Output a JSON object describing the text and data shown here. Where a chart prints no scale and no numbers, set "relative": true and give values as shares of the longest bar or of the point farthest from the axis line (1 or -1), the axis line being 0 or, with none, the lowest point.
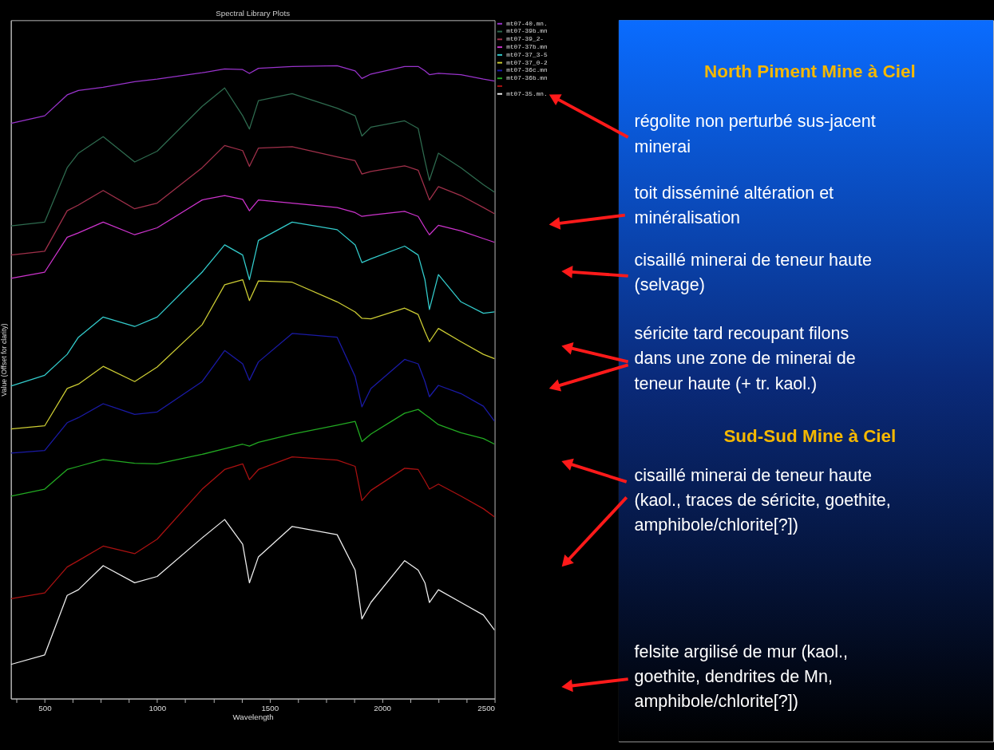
{
  "chart_data": {
    "type": "line",
    "title": "Spectral Library Plots",
    "xlabel": "Wavelength",
    "ylabel": "Value (Offset for clarity)",
    "relative": true,
    "tick_labels": "x",
    "grid": false,
    "legend": "right",
    "xlim": [
      350,
      2500
    ],
    "xticks": [
      {
        "value": 375,
        "label": null
      },
      500,
      {
        "value": 625,
        "label": null
      },
      {
        "value": 750,
        "label": null
      },
      {
        "value": 875,
        "label": null
      },
      1000,
      {
        "value": 1125,
        "label": null
      },
      {
        "value": 1250,
        "label": null
      },
      {
        "value": 1375,
        "label": null
      },
      1500,
      {
        "value": 1625,
        "label": null
      },
      {
        "value": 1750,
        "label": null
      },
      {
        "value": 1875,
        "label": null
      },
      2000,
      {
        "value": 2125,
        "label": null
      },
      {
        "value": 2250,
        "label": null
      },
      {
        "value": 2375,
        "label": null
      },
      2500
    ],
    "x": [
      350,
      500,
      600,
      650,
      760,
      900,
      1000,
      1200,
      1300,
      1380,
      1410,
      1450,
      1600,
      1800,
      1880,
      1910,
      1950,
      2100,
      2160,
      2190,
      2210,
      2250,
      2350,
      2450,
      2500
    ],
    "series": [
      {
        "name": "mt07-40.mn.",
        "color": "#9933cc",
        "values": [
          0.909,
          0.921,
          0.954,
          0.961,
          0.966,
          0.975,
          0.979,
          0.989,
          0.995,
          0.994,
          0.988,
          0.996,
          0.999,
          1.0,
          0.992,
          0.98,
          0.987,
          0.999,
          0.999,
          0.992,
          0.986,
          0.988,
          0.986,
          0.979,
          0.976
        ]
      },
      {
        "name": "mt07-39b.mn",
        "color": "#2e6b4f",
        "values": [
          0.747,
          0.753,
          0.839,
          0.862,
          0.888,
          0.848,
          0.865,
          0.936,
          0.965,
          0.921,
          0.9,
          0.945,
          0.956,
          0.933,
          0.921,
          0.889,
          0.903,
          0.913,
          0.901,
          0.85,
          0.819,
          0.862,
          0.839,
          0.812,
          0.8
        ]
      },
      {
        "name": "mt07-39_2-",
        "color": "#a0304a",
        "values": [
          0.701,
          0.707,
          0.771,
          0.78,
          0.803,
          0.774,
          0.783,
          0.839,
          0.874,
          0.866,
          0.841,
          0.87,
          0.872,
          0.856,
          0.85,
          0.829,
          0.833,
          0.842,
          0.835,
          0.807,
          0.788,
          0.809,
          0.795,
          0.776,
          0.766
        ]
      },
      {
        "name": "mt07-37b.mn",
        "color": "#cc33cc",
        "values": [
          0.664,
          0.674,
          0.729,
          0.736,
          0.753,
          0.733,
          0.744,
          0.788,
          0.795,
          0.789,
          0.771,
          0.788,
          0.783,
          0.776,
          0.768,
          0.762,
          0.764,
          0.77,
          0.762,
          0.744,
          0.733,
          0.748,
          0.739,
          0.727,
          0.721
        ]
      },
      {
        "name": "mt07-37_3-5",
        "color": "#33cccc",
        "values": [
          0.494,
          0.511,
          0.544,
          0.571,
          0.603,
          0.588,
          0.603,
          0.674,
          0.717,
          0.701,
          0.662,
          0.724,
          0.753,
          0.741,
          0.717,
          0.689,
          0.695,
          0.715,
          0.701,
          0.662,
          0.615,
          0.67,
          0.627,
          0.609,
          0.611
        ]
      },
      {
        "name": "mt07-37_0-2",
        "color": "#cccc33",
        "values": [
          0.426,
          0.431,
          0.49,
          0.497,
          0.525,
          0.501,
          0.524,
          0.591,
          0.654,
          0.662,
          0.629,
          0.66,
          0.658,
          0.627,
          0.611,
          0.601,
          0.6,
          0.617,
          0.607,
          0.58,
          0.564,
          0.585,
          0.564,
          0.544,
          0.537
        ]
      },
      {
        "name": "mt07-36c.mn",
        "color": "#1a1aa6",
        "values": [
          0.388,
          0.392,
          0.436,
          0.444,
          0.466,
          0.449,
          0.453,
          0.501,
          0.55,
          0.529,
          0.503,
          0.532,
          0.577,
          0.571,
          0.509,
          0.461,
          0.49,
          0.536,
          0.529,
          0.501,
          0.477,
          0.495,
          0.482,
          0.462,
          0.438
        ]
      },
      {
        "name": "mt07-36b.mn",
        "color": "#22aa22",
        "values": [
          0.32,
          0.331,
          0.362,
          0.367,
          0.378,
          0.372,
          0.371,
          0.386,
          0.395,
          0.402,
          0.399,
          0.405,
          0.418,
          0.432,
          0.438,
          0.406,
          0.418,
          0.451,
          0.457,
          0.449,
          0.444,
          0.433,
          0.42,
          0.411,
          0.402
        ]
      },
      {
        "color": "#aa1111",
        "values": [
          0.158,
          0.167,
          0.208,
          0.218,
          0.241,
          0.229,
          0.252,
          0.331,
          0.362,
          0.371,
          0.346,
          0.362,
          0.382,
          0.377,
          0.367,
          0.313,
          0.329,
          0.364,
          0.362,
          0.344,
          0.331,
          0.339,
          0.32,
          0.3,
          0.287
        ]
      },
      {
        "name": "mt07-35.mn.",
        "color": "#eeeeee",
        "values": [
          0.054,
          0.069,
          0.163,
          0.172,
          0.21,
          0.183,
          0.193,
          0.254,
          0.283,
          0.244,
          0.183,
          0.224,
          0.272,
          0.259,
          0.203,
          0.126,
          0.152,
          0.218,
          0.203,
          0.183,
          0.152,
          0.172,
          0.152,
          0.132,
          0.108
        ]
      }
    ],
    "annotations": [
      "North Piment Mine à Ciel",
      "régolite non perturbé sus-jacent\nminerai",
      "toit disséminé altération et\nminéralisation",
      "cisaillé minerai de teneur haute\n(selvage)",
      "séricite tard recoupant filons\ndans une zone de minerai de\nteneur haute (+ tr. kaol.)",
      "Sud-Sud Mine à Ciel",
      "cisaillé minerai de teneur haute\n(kaol., traces de séricite, goethite,\namphibole/chlorite[?])",
      "felsite argilisé de mur (kaol.,\ngoethite, dendrites de Mn,\namphibole/chlorite[?])"
    ]
  }
}
